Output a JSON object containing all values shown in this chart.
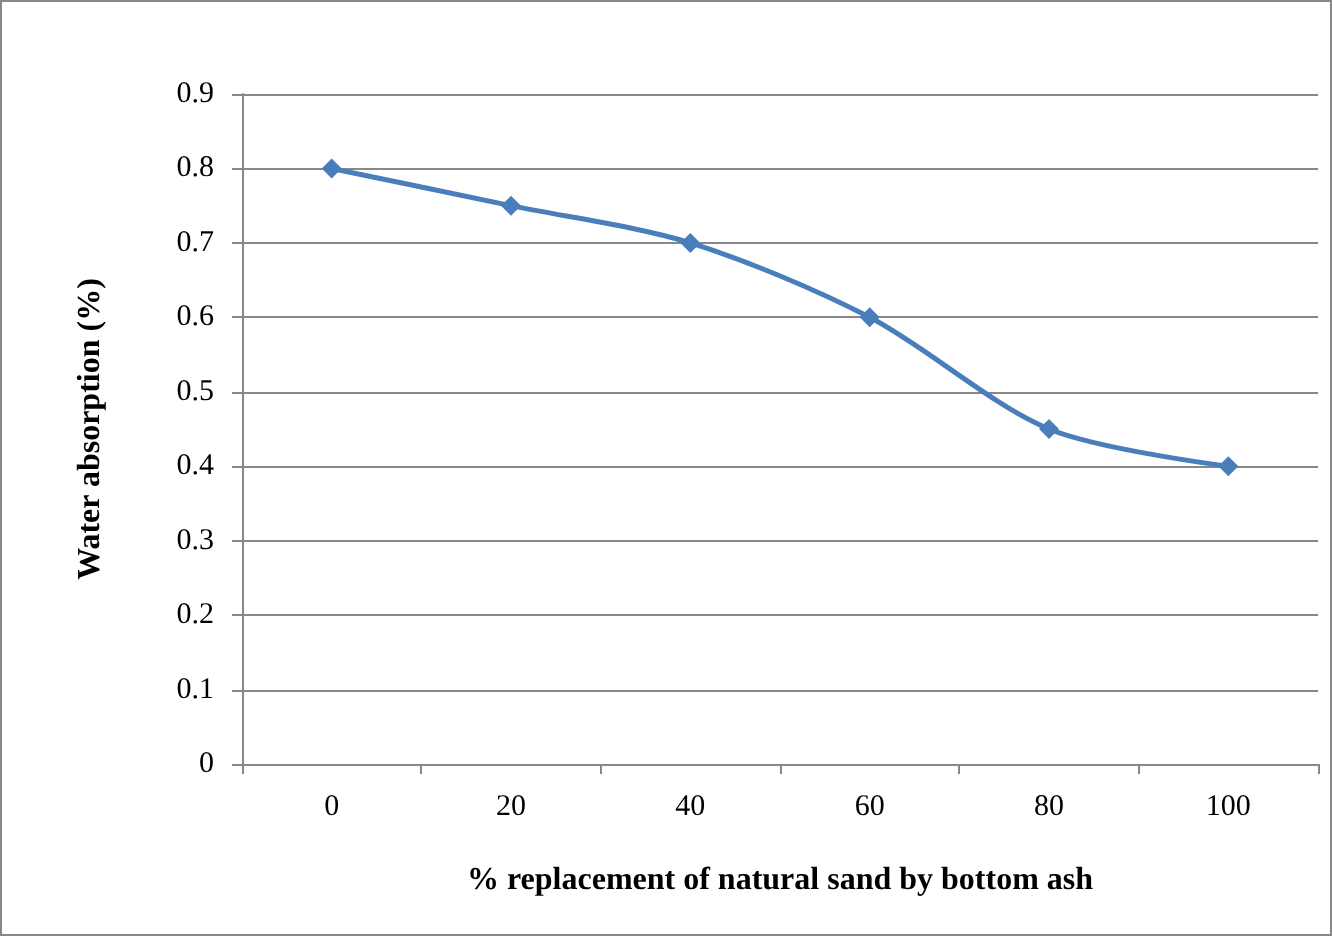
{
  "chart_data": {
    "type": "line",
    "xlabel": "% replacement of natural sand by bottom ash",
    "ylabel": "Water absorption (%)",
    "categories": [
      "0",
      "20",
      "40",
      "60",
      "80",
      "100"
    ],
    "series": [
      {
        "color": "#4a7ebb",
        "values": [
          0.8,
          0.75,
          0.7,
          0.6,
          0.45,
          0.4
        ]
      }
    ],
    "ylim": [
      0,
      0.9
    ],
    "yticks": [
      0,
      0.1,
      0.2,
      0.3,
      0.4,
      0.5,
      0.6,
      0.7,
      0.8,
      0.9
    ],
    "grid": "y",
    "marker": "diamond",
    "line_style": "solid"
  }
}
